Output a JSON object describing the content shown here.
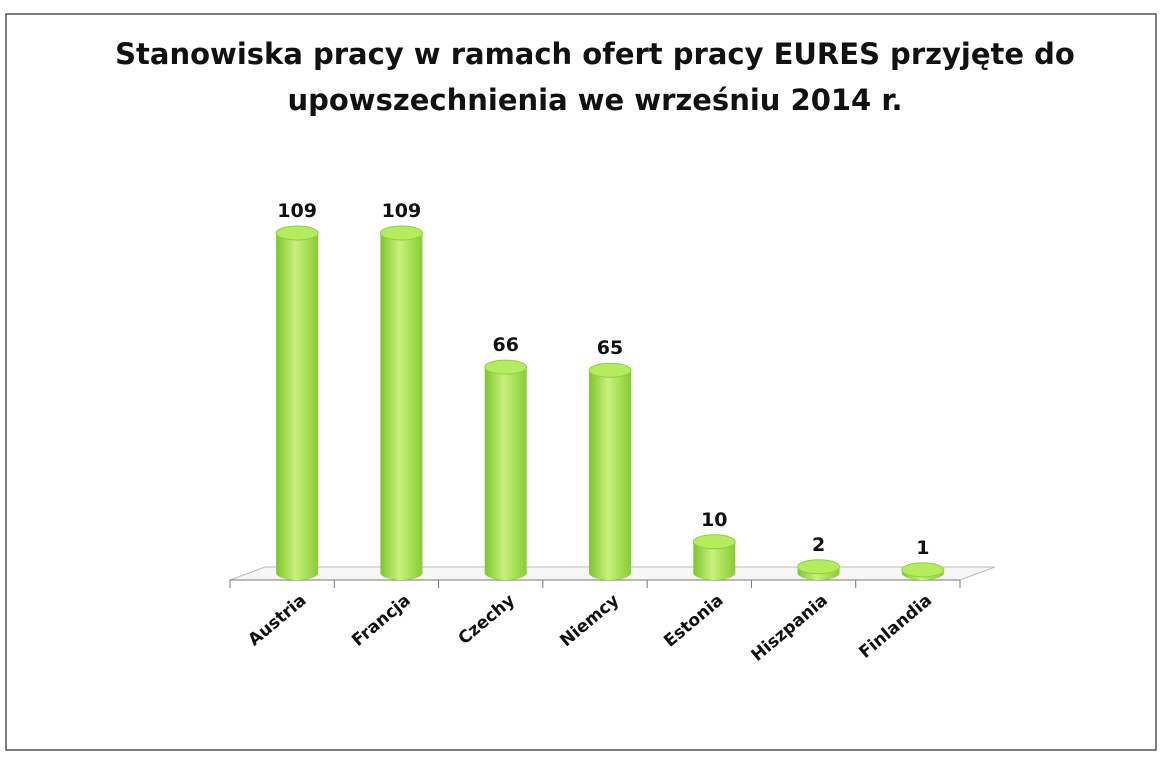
{
  "chart_data": {
    "type": "bar",
    "title": [
      "Stanowiska pracy w ramach ofert pracy EURES przyjęte do",
      "upowszechnienia we wrześniu 2014 r."
    ],
    "categories": [
      "Austria",
      "Francja",
      "Czechy",
      "Niemcy",
      "Estonia",
      "Hiszpania",
      "Finlandia"
    ],
    "values": [
      109,
      109,
      66,
      65,
      10,
      2,
      1
    ],
    "color": "#99dd44"
  }
}
